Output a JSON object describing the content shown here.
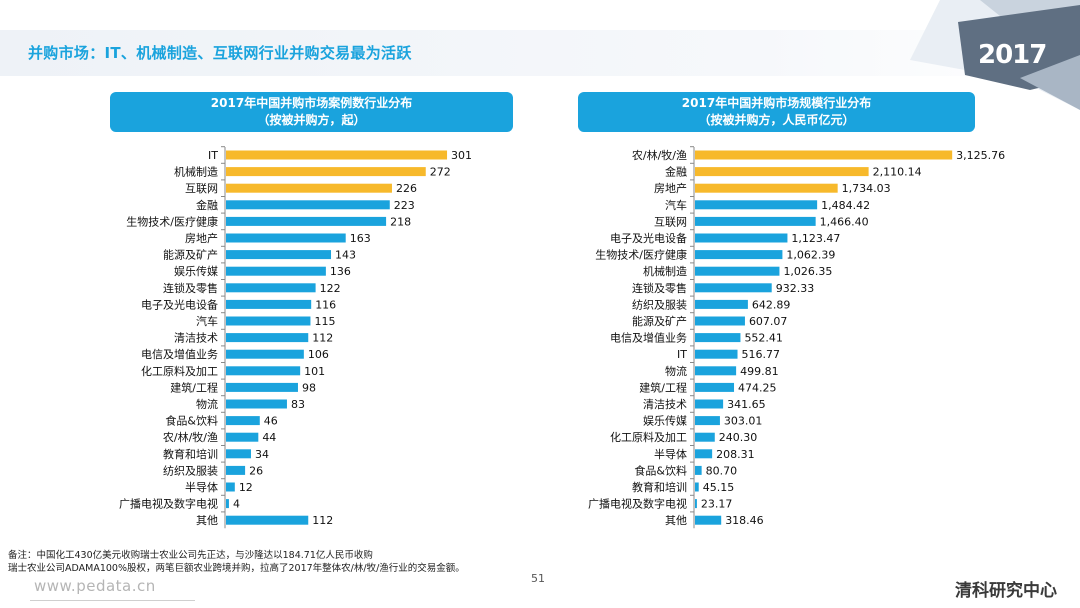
{
  "page": {
    "title": "并购市场：IT、机械制造、互联网行业并购交易最为活跃",
    "year_badge": "2017",
    "footnote_line1": "备注：中国化工430亿美元收购瑞士农业公司先正达，与沙隆达以184.71亿人民币收购",
    "footnote_line2": "瑞士农业公司ADAMA100%股权，两笔巨额农业跨境并购，拉高了2017年整体农/林/牧/渔行业的交易金额。",
    "page_number": "51",
    "website": "www.pedata.cn",
    "brand": "清科研究中心"
  },
  "colors": {
    "accent": "#1aa3dd",
    "highlight": "#f7b92b",
    "bar": "#1aa3dd"
  },
  "chart_data": [
    {
      "type": "bar",
      "orientation": "horizontal",
      "title_line1": "2017年中国并购市场案例数行业分布",
      "title_line2": "（按被并购方，起）",
      "categories": [
        "IT",
        "机械制造",
        "互联网",
        "金融",
        "生物技术/医疗健康",
        "房地产",
        "能源及矿产",
        "娱乐传媒",
        "连锁及零售",
        "电子及光电设备",
        "汽车",
        "清洁技术",
        "电信及增值业务",
        "化工原料及加工",
        "建筑/工程",
        "物流",
        "食品&饮料",
        "农/林/牧/渔",
        "教育和培训",
        "纺织及服装",
        "半导体",
        "广播电视及数字电视",
        "其他"
      ],
      "values": [
        301,
        272,
        226,
        223,
        218,
        163,
        143,
        136,
        122,
        116,
        115,
        112,
        106,
        101,
        98,
        83,
        46,
        44,
        34,
        26,
        12,
        4,
        112
      ],
      "value_labels": [
        "301",
        "272",
        "226",
        "223",
        "218",
        "163",
        "143",
        "136",
        "122",
        "116",
        "115",
        "112",
        "106",
        "101",
        "98",
        "83",
        "46",
        "44",
        "34",
        "26",
        "12",
        "4",
        "112"
      ],
      "highlighted_top": 3,
      "xlim": [
        0,
        320
      ]
    },
    {
      "type": "bar",
      "orientation": "horizontal",
      "title_line1": "2017年中国并购市场规模行业分布",
      "title_line2": "（按被并购方，人民币亿元）",
      "categories": [
        "农/林/牧/渔",
        "金融",
        "房地产",
        "汽车",
        "互联网",
        "电子及光电设备",
        "生物技术/医疗健康",
        "机械制造",
        "连锁及零售",
        "纺织及服装",
        "能源及矿产",
        "电信及增值业务",
        "IT",
        "物流",
        "建筑/工程",
        "清洁技术",
        "娱乐传媒",
        "化工原料及加工",
        "半导体",
        "食品&饮料",
        "教育和培训",
        "广播电视及数字电视",
        "其他"
      ],
      "values": [
        3125.76,
        2110.14,
        1734.03,
        1484.42,
        1466.4,
        1123.47,
        1062.39,
        1026.35,
        932.33,
        642.89,
        607.07,
        552.41,
        516.77,
        499.81,
        474.25,
        341.65,
        303.01,
        240.3,
        208.31,
        80.7,
        45.15,
        23.17,
        318.46
      ],
      "value_labels": [
        "3,125.76",
        "2,110.14",
        "1,734.03",
        "1,484.42",
        "1,466.40",
        "1,123.47",
        "1,062.39",
        "1,026.35",
        "932.33",
        "642.89",
        "607.07",
        "552.41",
        "516.77",
        "499.81",
        "474.25",
        "341.65",
        "303.01",
        "240.30",
        "208.31",
        "80.70",
        "45.15",
        "23.17",
        "318.46"
      ],
      "highlighted_top": 3,
      "xlim": [
        0,
        3160
      ]
    }
  ]
}
